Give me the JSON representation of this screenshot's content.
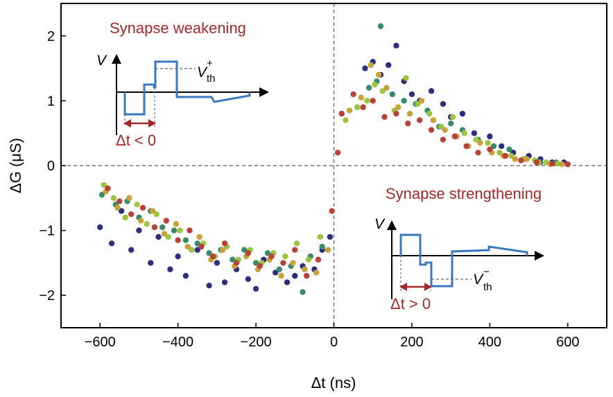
{
  "chart_data": {
    "type": "scatter",
    "title": "",
    "xlabel": "Δt (ns)",
    "ylabel": "ΔG (μS)",
    "xlim": [
      -700,
      700
    ],
    "ylim": [
      -2.5,
      2.5
    ],
    "xticks": [
      -600,
      -400,
      -200,
      0,
      200,
      400,
      600
    ],
    "yticks": [
      -2,
      -1,
      0,
      1,
      2
    ],
    "xtick_labels": [
      "−600",
      "−400",
      "−200",
      "0",
      "200",
      "400",
      "600"
    ],
    "ytick_labels": [
      "−2",
      "−1",
      "0",
      "1",
      "2"
    ],
    "grid": false,
    "reference_lines": "dashed lines at x = 0 and y = 0",
    "series_colors": [
      "#2b2f7e",
      "#3a8b6b",
      "#9dc43e",
      "#c9a13a",
      "#b8423a"
    ],
    "series": [
      {
        "color": "#2b2f7e",
        "x": [
          -600,
          -570,
          -545,
          -520,
          -500,
          -470,
          -450,
          -420,
          -400,
          -380,
          -350,
          -320,
          -300,
          -280,
          -250,
          -220,
          -200,
          -180,
          -150,
          -120,
          -100,
          -80,
          -50,
          -30,
          -10,
          80,
          100,
          120,
          140,
          160,
          180,
          200,
          220,
          250,
          280,
          300,
          330,
          360,
          400,
          430,
          460,
          500,
          530,
          560,
          590
        ],
        "y": [
          -0.95,
          -1.2,
          -0.7,
          -1.3,
          -1.0,
          -1.5,
          -1.1,
          -1.6,
          -1.4,
          -1.7,
          -1.3,
          -1.85,
          -1.5,
          -1.8,
          -1.6,
          -1.75,
          -1.9,
          -1.45,
          -1.65,
          -1.8,
          -1.7,
          -1.55,
          -1.6,
          -1.3,
          -1.1,
          1.5,
          1.6,
          1.4,
          1.55,
          1.85,
          1.3,
          1.1,
          1.0,
          1.15,
          0.95,
          0.75,
          0.8,
          0.5,
          0.45,
          0.3,
          0.2,
          0.15,
          0.1,
          0.05,
          0.05
        ]
      },
      {
        "color": "#3a8b6b",
        "x": [
          -595,
          -560,
          -530,
          -500,
          -470,
          -440,
          -410,
          -380,
          -350,
          -320,
          -290,
          -260,
          -230,
          -200,
          -170,
          -140,
          -110,
          -80,
          -60,
          -30,
          90,
          110,
          120,
          150,
          180,
          210,
          240,
          270,
          300,
          330,
          370,
          410,
          450,
          490,
          530,
          570,
          600
        ],
        "y": [
          -0.45,
          -0.6,
          -0.55,
          -0.8,
          -0.7,
          -0.95,
          -1.0,
          -1.15,
          -1.2,
          -1.35,
          -1.3,
          -1.45,
          -1.3,
          -1.5,
          -1.35,
          -1.6,
          -1.55,
          -1.95,
          -1.4,
          -1.25,
          1.2,
          1.3,
          2.15,
          1.1,
          1.0,
          0.95,
          0.85,
          0.6,
          0.65,
          0.55,
          0.4,
          0.3,
          0.25,
          0.1,
          0.05,
          0.05,
          0.02
        ]
      },
      {
        "color": "#9dc43e",
        "x": [
          -590,
          -565,
          -535,
          -505,
          -480,
          -455,
          -425,
          -395,
          -365,
          -335,
          -305,
          -275,
          -245,
          -215,
          -185,
          -155,
          -125,
          -95,
          -65,
          -35,
          30,
          60,
          85,
          105,
          125,
          155,
          185,
          215,
          245,
          275,
          305,
          335,
          365,
          395,
          425,
          455,
          485,
          515,
          545,
          575
        ],
        "y": [
          -0.3,
          -0.5,
          -0.8,
          -0.6,
          -0.9,
          -0.75,
          -1.1,
          -1.0,
          -1.3,
          -1.2,
          -1.4,
          -1.25,
          -1.45,
          -1.3,
          -1.5,
          -1.35,
          -1.4,
          -1.2,
          -1.45,
          -1.1,
          0.7,
          0.9,
          1.0,
          1.25,
          1.15,
          0.85,
          1.35,
          0.95,
          0.8,
          0.6,
          0.75,
          0.5,
          0.4,
          0.35,
          0.2,
          0.15,
          0.1,
          0.08,
          0.05,
          0.03
        ]
      },
      {
        "color": "#c9a13a",
        "x": [
          -585,
          -555,
          -525,
          -495,
          -465,
          -435,
          -405,
          -375,
          -345,
          -315,
          -285,
          -255,
          -225,
          -195,
          -165,
          -135,
          -105,
          -75,
          -45,
          -15,
          40,
          70,
          95,
          115,
          135,
          165,
          195,
          225,
          255,
          285,
          315,
          345,
          375,
          405,
          435,
          465,
          495,
          525,
          555,
          585
        ],
        "y": [
          -0.4,
          -0.65,
          -0.5,
          -0.85,
          -0.7,
          -1.05,
          -0.9,
          -1.25,
          -1.1,
          -1.45,
          -1.3,
          -1.55,
          -1.4,
          -1.6,
          -1.45,
          -1.7,
          -1.5,
          -1.6,
          -1.65,
          -1.3,
          0.85,
          1.05,
          1.55,
          1.4,
          1.2,
          0.9,
          0.8,
          1.0,
          0.7,
          0.55,
          0.45,
          0.3,
          0.35,
          0.2,
          0.15,
          0.1,
          0.1,
          0.05,
          0.02,
          0.02
        ]
      },
      {
        "color": "#b8423a",
        "x": [
          -580,
          -550,
          -520,
          -490,
          -460,
          -430,
          -400,
          -370,
          -340,
          -310,
          -280,
          -250,
          -220,
          -190,
          -160,
          -130,
          -100,
          -70,
          -40,
          -5,
          10,
          20,
          50,
          75,
          100,
          130,
          160,
          190,
          220,
          250,
          280,
          310,
          340,
          370,
          400,
          440,
          480,
          520,
          560,
          600
        ],
        "y": [
          -0.35,
          -0.55,
          -0.75,
          -0.65,
          -0.95,
          -0.85,
          -1.15,
          -1.0,
          -1.25,
          -1.4,
          -1.2,
          -1.5,
          -1.35,
          -1.55,
          -1.4,
          -1.5,
          -1.3,
          -1.7,
          -1.45,
          -0.7,
          0.2,
          0.8,
          1.1,
          0.9,
          1.0,
          0.75,
          0.8,
          0.65,
          0.7,
          0.55,
          0.4,
          0.45,
          0.3,
          0.2,
          0.25,
          0.15,
          0.08,
          0.05,
          0.03,
          0.02
        ]
      }
    ],
    "annotations": {
      "top_left": "Synapse weakening",
      "bottom_right": "Synapse strengthening",
      "inset_v_label": "V",
      "inset_vth_plus": "V",
      "inset_vth_plus_sub": "th",
      "inset_vth_plus_sup": "+",
      "inset_vth_minus": "V",
      "inset_vth_minus_sub": "th",
      "inset_vth_minus_sup": "−",
      "dt_left": "Δt < 0",
      "dt_right": "Δt > 0"
    }
  }
}
